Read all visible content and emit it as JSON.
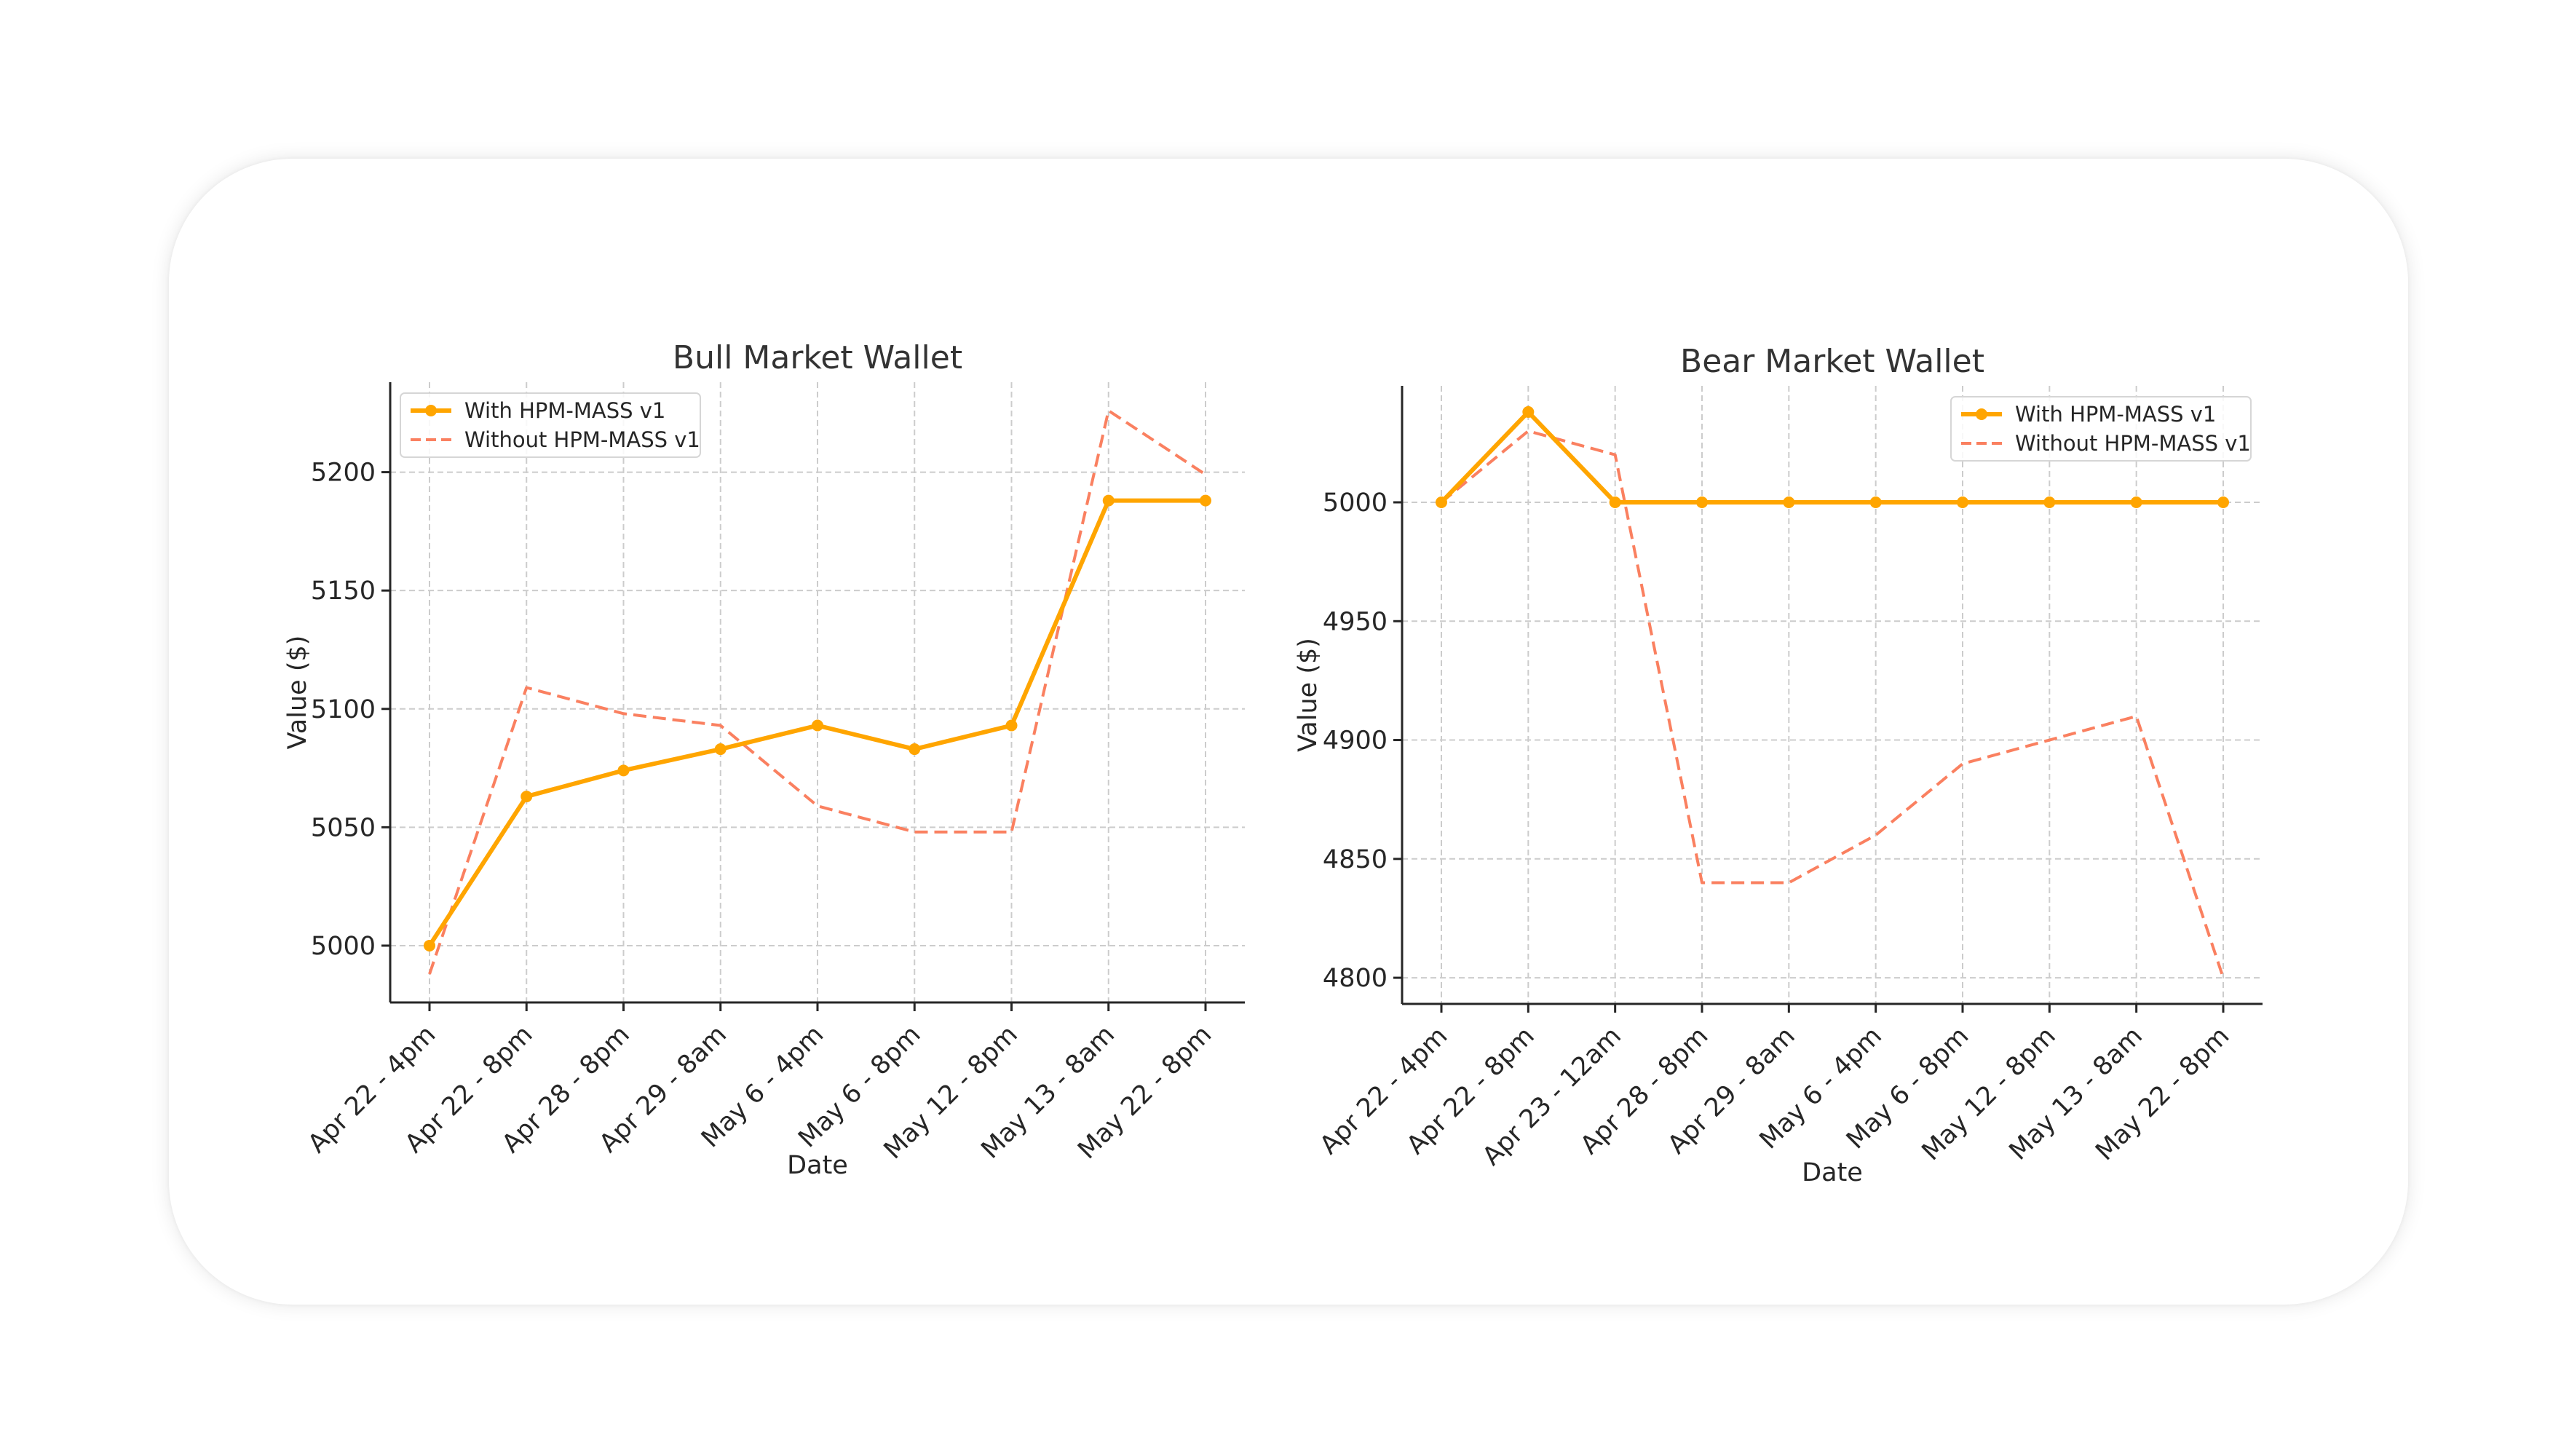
{
  "chart_data": [
    {
      "type": "line",
      "title": "Bull Market Wallet",
      "xlabel": "Date",
      "ylabel": "Value ($)",
      "categories": [
        "Apr 22 - 4pm",
        "Apr 22 - 8pm",
        "Apr 28 - 8pm",
        "Apr 29 - 8am",
        "May 6 - 4pm",
        "May 6 - 8pm",
        "May 12 - 8pm",
        "May 13 - 8am",
        "May 22 - 8pm"
      ],
      "ylim": [
        4976,
        5238
      ],
      "yticks": [
        5000,
        5050,
        5100,
        5150,
        5200
      ],
      "grid": true,
      "legend_position": "upper-left",
      "series": [
        {
          "name": "With HPM-MASS v1",
          "style": "solid-markers",
          "color": "#FFA500",
          "values": [
            5000,
            5063,
            5074,
            5083,
            5093,
            5083,
            5093,
            5188,
            5188
          ]
        },
        {
          "name": "Without HPM-MASS v1",
          "style": "dashed",
          "color": "#FA8060",
          "values": [
            4988,
            5109,
            5098,
            5093,
            5059,
            5048,
            5048,
            5226,
            5199
          ]
        }
      ]
    },
    {
      "type": "line",
      "title": "Bear Market Wallet",
      "xlabel": "Date",
      "ylabel": "Value ($)",
      "categories": [
        "Apr 22 - 4pm",
        "Apr 22 - 8pm",
        "Apr 23 - 12am",
        "Apr 28 - 8pm",
        "Apr 29 - 8am",
        "May 6 - 4pm",
        "May 6 - 8pm",
        "May 12 - 8pm",
        "May 13 - 8am",
        "May 22 - 8pm"
      ],
      "ylim": [
        4789,
        5049
      ],
      "yticks": [
        4800,
        4850,
        4900,
        4950,
        5000
      ],
      "grid": true,
      "legend_position": "upper-right",
      "series": [
        {
          "name": "With HPM-MASS v1",
          "style": "solid-markers",
          "color": "#FFA500",
          "values": [
            5000,
            5038,
            5000,
            5000,
            5000,
            5000,
            5000,
            5000,
            5000,
            5000
          ]
        },
        {
          "name": "Without HPM-MASS v1",
          "style": "dashed",
          "color": "#FA8060",
          "values": [
            5000,
            5030,
            5020,
            4840,
            4840,
            4860,
            4890,
            4900,
            4910,
            4800
          ]
        }
      ]
    }
  ]
}
